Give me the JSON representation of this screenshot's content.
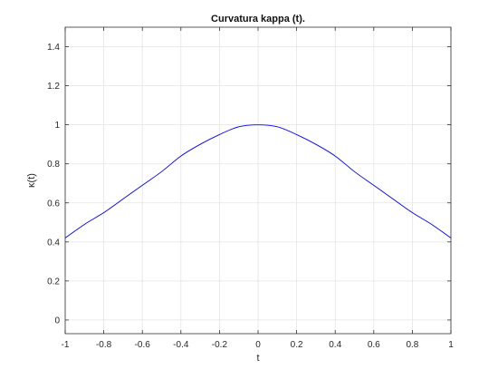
{
  "chart_data": {
    "type": "line",
    "title": "Curvatura kappa (t).",
    "xlabel": "t",
    "ylabel": "κ(t)",
    "xlim": [
      -1,
      1
    ],
    "ylim": [
      -0.07,
      1.5
    ],
    "grid": true,
    "xticks": [
      -1,
      -0.8,
      -0.6,
      -0.4,
      -0.2,
      0,
      0.2,
      0.4,
      0.6,
      0.8,
      1
    ],
    "xtick_labels": [
      "-1",
      "-0.8",
      "-0.6",
      "-0.4",
      "-0.2",
      "0",
      "0.2",
      "0.4",
      "0.6",
      "0.8",
      "1"
    ],
    "yticks": [
      0,
      0.2,
      0.4,
      0.6,
      0.8,
      1,
      1.2,
      1.4
    ],
    "ytick_labels": [
      "0",
      "0.2",
      "0.4",
      "0.6",
      "0.8",
      "1",
      "1.2",
      "1.4"
    ],
    "series": [
      {
        "color": "#0000ff",
        "x": [
          -1,
          -0.9,
          -0.8,
          -0.7,
          -0.6,
          -0.5,
          -0.4,
          -0.3,
          -0.2,
          -0.1,
          0,
          0.1,
          0.2,
          0.3,
          0.4,
          0.5,
          0.6,
          0.7,
          0.8,
          0.9,
          1
        ],
        "y": [
          0.42,
          0.49,
          0.55,
          0.62,
          0.69,
          0.76,
          0.84,
          0.9,
          0.95,
          0.99,
          1.0,
          0.99,
          0.95,
          0.9,
          0.84,
          0.76,
          0.69,
          0.62,
          0.55,
          0.49,
          0.42
        ]
      }
    ]
  }
}
